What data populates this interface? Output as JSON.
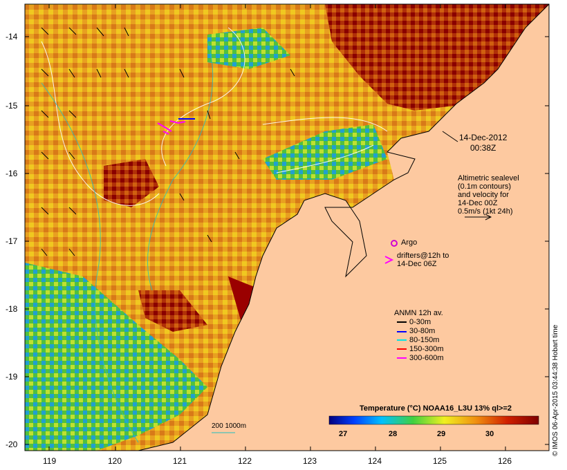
{
  "map": {
    "date_label_line1": "14-Dec-2012",
    "date_label_line2": "00:38Z",
    "sealevel_note": "Altimetric sealevel\n(0.1m contours)\nand velocity for\n14-Dec 00Z\n0.5m/s (1kt 24h)",
    "argo_label": "Argo",
    "drifters_label": "drifters@12h to\n14-Dec 06Z",
    "anmn_title": "ANMN 12h av.",
    "anmn_legend": [
      {
        "label": "0-30m",
        "color": "#000000"
      },
      {
        "label": "30-80m",
        "color": "#0000ff"
      },
      {
        "label": "80-150m",
        "color": "#00e5e5"
      },
      {
        "label": "150-300m",
        "color": "#ff0000"
      },
      {
        "label": "300-600m",
        "color": "#ff00ff"
      }
    ],
    "scale_label": "200  1000m",
    "colorbar_title": "Temperature (°C) NOAA16_L3U 13% ql>=2",
    "colorbar_ticks": [
      "27",
      "28",
      "29",
      "30"
    ],
    "credit": "© IMOS 06-Apr-2015 03:44:38 Hobart time",
    "y_ticks": [
      "-14",
      "-15",
      "-16",
      "-17",
      "-18",
      "-19",
      "-20"
    ],
    "x_ticks": [
      "119",
      "120",
      "121",
      "122",
      "123",
      "124",
      "125",
      "126"
    ],
    "colors": {
      "land": "#fdc9a0",
      "hot": "#9a0000",
      "warm": "#e0821a",
      "mid": "#f5d21f",
      "cool": "#40c040",
      "cold": "#0aa0d8",
      "coldest": "#0a2a9a"
    }
  }
}
